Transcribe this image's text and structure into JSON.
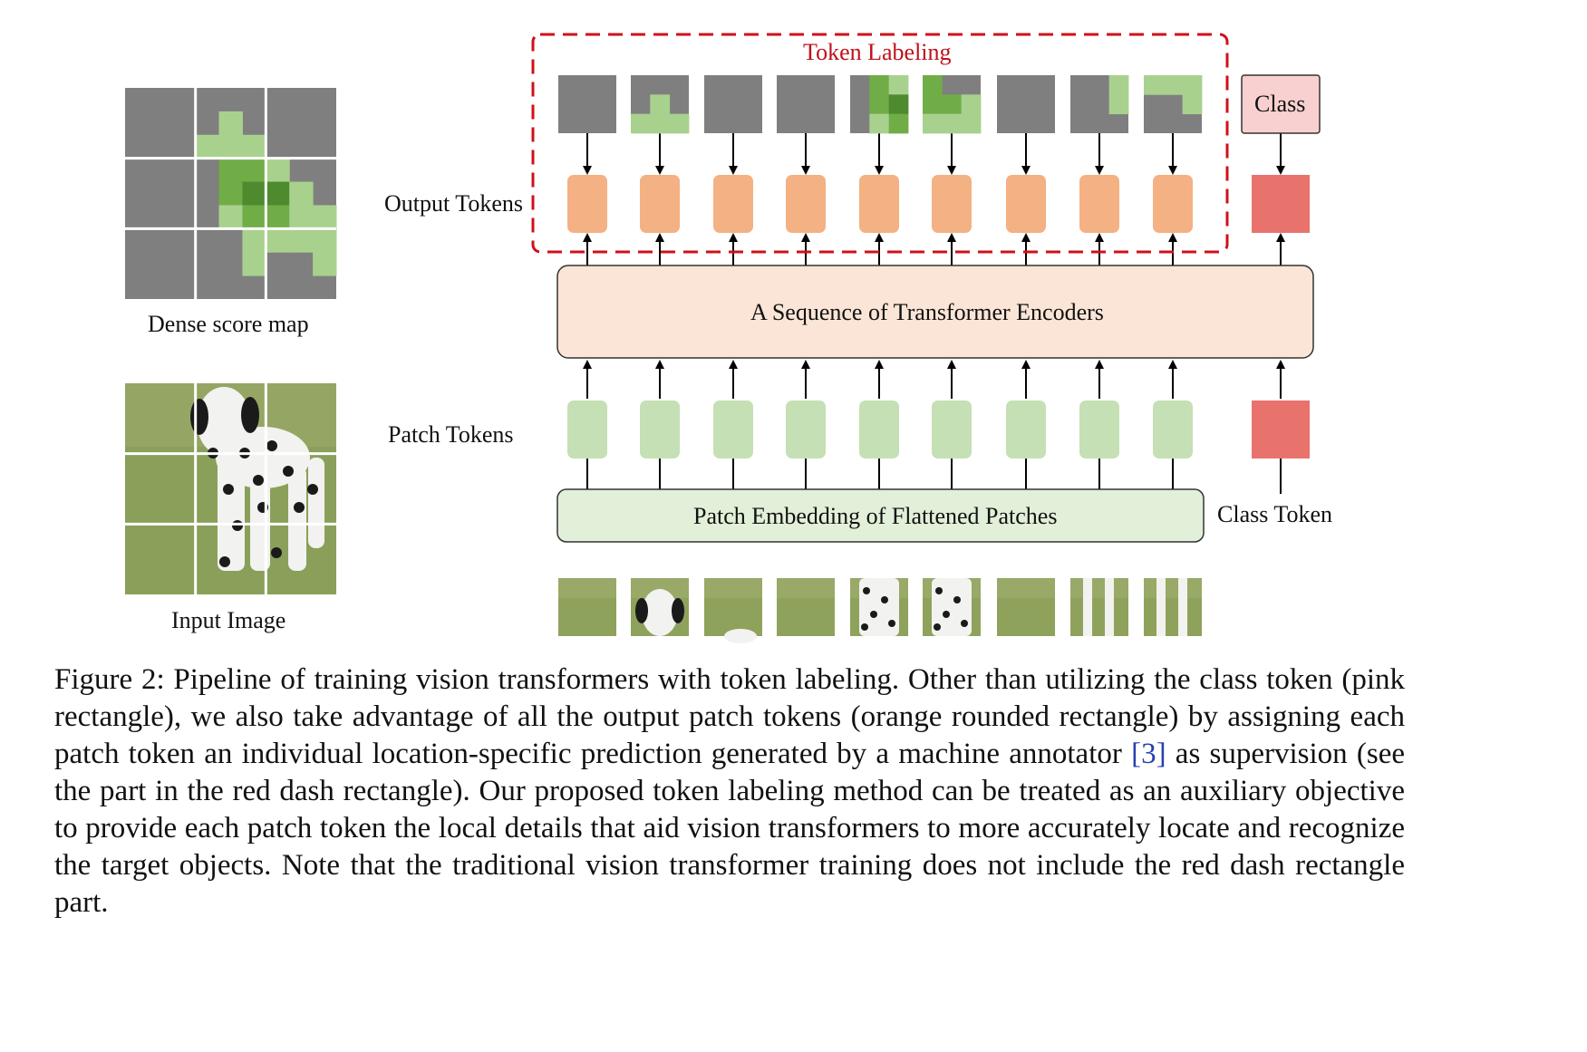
{
  "labels": {
    "token_labeling": "Token Labeling",
    "class_box": "Class",
    "output_tokens": "Output Tokens",
    "encoder": "A Sequence of Transformer Encoders",
    "patch_tokens": "Patch Tokens",
    "patch_embedding": "Patch Embedding of Flattened Patches",
    "class_token": "Class Token",
    "dense_score_map": "Dense score map",
    "input_image": "Input Image"
  },
  "colors": {
    "output_token": "#f4b183",
    "patch_token": "#c5e0b4",
    "class_token": "#e8736d",
    "class_box": "#f8d0d0",
    "encoder_fill": "#fbe5d6",
    "embedding_fill": "#e2f0d9",
    "dash_border": "#d0101a",
    "gray_cell": "#7f7f7f",
    "green_light": "#a9d18e",
    "green_mid": "#70ad47",
    "green_dark": "#4e8a2e"
  },
  "caption": {
    "before_ref": "Figure 2: Pipeline of training vision transformers with token labeling. Other than utilizing the class token (pink rectangle), we also take advantage of all the output patch tokens (orange rounded rectangle) by assigning each patch token an individual location-specific prediction generated by a machine annotator ",
    "ref": "[3]",
    "after_ref": " as supervision (see the part in the red dash rectangle). Our proposed token labeling method can be treated as an auxiliary objective to provide each patch token the local details that aid vision transformers to more accurately locate and recognize the target objects. Note that the traditional vision transformer training does not include the red dash rectangle part."
  }
}
